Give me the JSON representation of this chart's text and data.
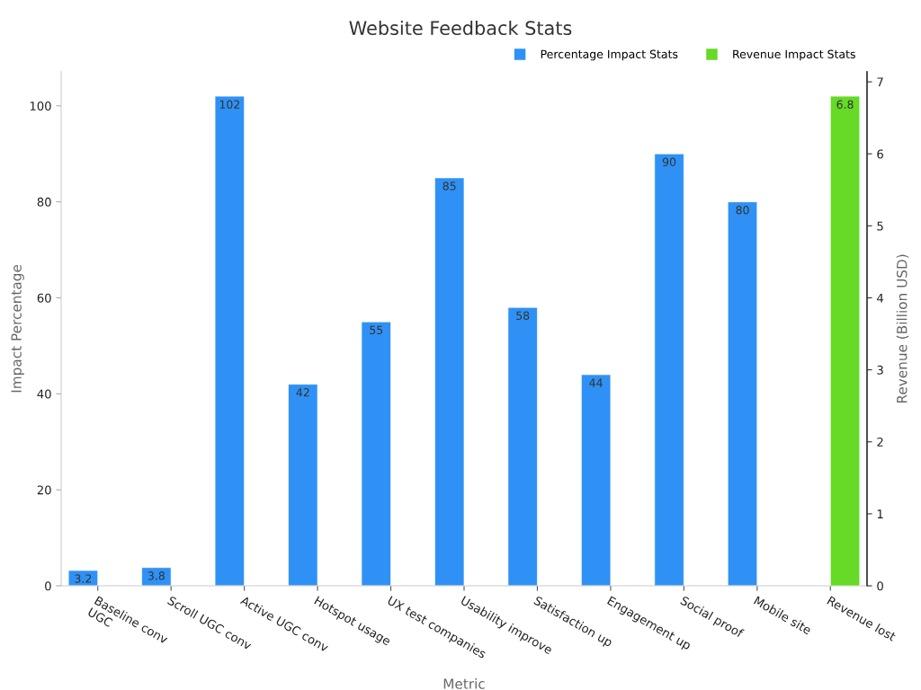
{
  "chart_data": {
    "type": "bar",
    "title": "Website Feedback Stats",
    "xlabel": "Metric",
    "ylabel": "Impact Percentage",
    "y2label": "Revenue (Billion USD)",
    "categories": [
      "Baseline conv\nUGC",
      "Scroll UGC conv",
      "Active UGC conv",
      "Hotspot usage",
      "UX test companies",
      "Usability improve",
      "Satisfaction up",
      "Engagement up",
      "Social proof",
      "Mobile site",
      "Revenue lost"
    ],
    "series": [
      {
        "name": "Percentage Impact Stats",
        "color": "#2f91f5",
        "values": [
          3.2,
          3.8,
          102,
          42,
          55,
          85,
          58,
          44,
          90,
          80,
          null
        ]
      },
      {
        "name": "Revenue Impact Stats",
        "color": "#66da26",
        "axis": "y2",
        "values": [
          null,
          null,
          null,
          null,
          null,
          null,
          null,
          null,
          null,
          null,
          6.8
        ]
      }
    ],
    "ylim": [
      0,
      107.1
    ],
    "yticks": [
      0,
      20,
      40,
      60,
      80,
      100
    ],
    "y2lim": [
      0,
      7.14
    ],
    "y2ticks": [
      0,
      1,
      2,
      3,
      4,
      5,
      6,
      7
    ],
    "data_labels": true,
    "legend": "top right"
  }
}
